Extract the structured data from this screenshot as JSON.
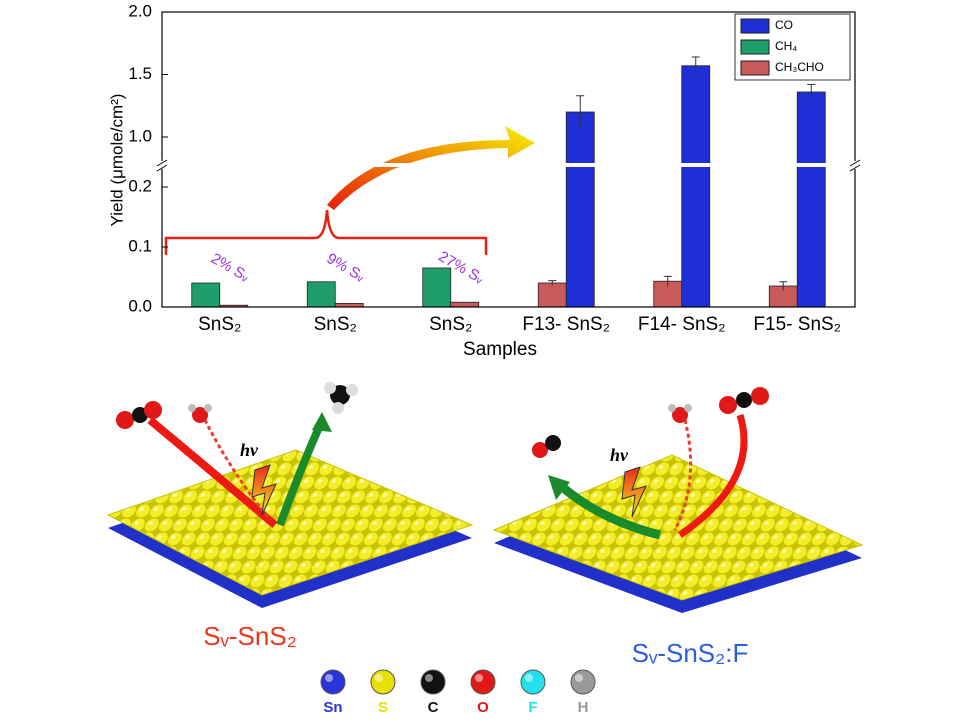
{
  "chart_data": {
    "type": "bar",
    "y_label": "Yield (μmole/cm²)",
    "x_label": "Samples",
    "categories": [
      "SnS₂",
      "SnS₂",
      "SnS₂",
      "F13- SnS₂",
      "F14- SnS₂",
      "F15- SnS₂"
    ],
    "series": [
      {
        "name": "CO",
        "color": "#1f2fd6",
        "values": [
          null,
          null,
          null,
          1.2,
          1.57,
          1.36
        ],
        "errors": [
          null,
          null,
          null,
          0.13,
          0.07,
          0.06
        ]
      },
      {
        "name": "CH₄",
        "color": "#1e9e6a",
        "values": [
          0.04,
          0.042,
          0.065,
          null,
          null,
          null
        ],
        "errors": [
          null,
          null,
          null,
          null,
          null,
          null
        ]
      },
      {
        "name": "CH₃CHO",
        "color": "#c95a5a",
        "values": [
          0.003,
          0.006,
          0.008,
          0.04,
          0.043,
          0.035
        ],
        "errors": [
          null,
          null,
          null,
          0.004,
          0.008,
          0.007
        ]
      }
    ],
    "ylim": [
      0,
      2.0
    ],
    "ybreak": [
      0.2,
      1.0
    ],
    "yticks": [
      {
        "value": 0,
        "label": "0.0"
      },
      0.1,
      0.2,
      {
        "value": 1,
        "label": "1.0"
      },
      1.5,
      {
        "value": 2,
        "label": "2.0"
      }
    ],
    "legend": "upper right",
    "annotations": [
      "2% Sᵥ",
      "9% Sᵥ",
      "27% Sᵥ"
    ]
  },
  "illustration": {
    "photon_label": "hν",
    "left_label": "Sᵥ-SnS₂",
    "right_label": "Sᵥ-SnS₂:F",
    "atom_legend": [
      {
        "label": "Sn",
        "color": "#2a35d8"
      },
      {
        "label": "S",
        "color": "#e8e000"
      },
      {
        "label": "C",
        "color": "#111111"
      },
      {
        "label": "O",
        "color": "#e01818"
      },
      {
        "label": "F",
        "color": "#22e0ee"
      },
      {
        "label": "H",
        "color": "#9a9a9a"
      }
    ]
  }
}
